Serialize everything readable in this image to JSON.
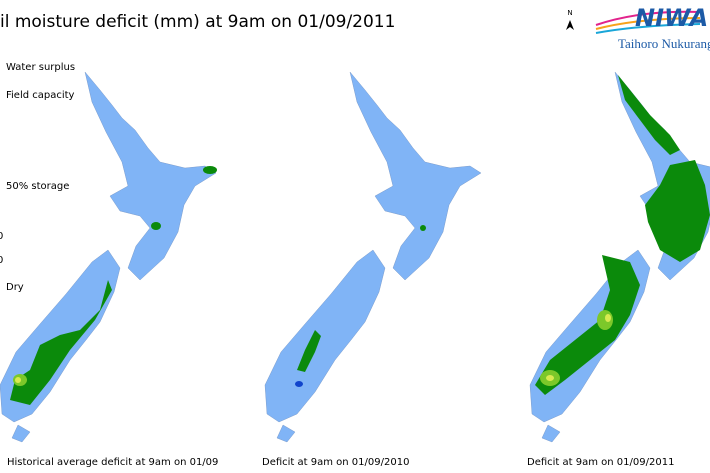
{
  "header": {
    "title": "il moisture deficit (mm) at  9am on 01/09/2011",
    "north": "N",
    "logo": "NIWA",
    "logo_subtitle": "Taihoro Nukurang"
  },
  "legend": [
    "Water surplus",
    "Field capacity",
    "50% storage",
    "0",
    "0",
    "Dry"
  ],
  "captions": [
    "Historical average deficit at 9am on 01/09",
    "Deficit at  9am on 01/09/2010",
    "Deficit at  9am on 01/09/2011"
  ]
}
